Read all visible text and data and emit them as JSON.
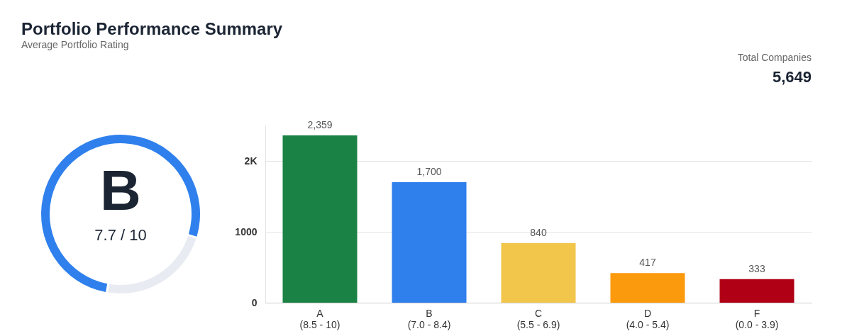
{
  "chart_data": [
    {
      "type": "donut",
      "title": "Portfolio Performance Summary",
      "subtitle": "Average Portfolio Rating",
      "categories": [
        null,
        null
      ],
      "values": [
        77,
        23
      ],
      "colors": [
        "#2f80ed",
        "#e8ecf2"
      ],
      "annotations": [
        "B",
        "7.7 / 10"
      ]
    },
    {
      "type": "bar",
      "categories": [
        "A\n(8.5 - 10)",
        "B\n(7.0 - 8.4)",
        "C\n(5.5 - 6.9)",
        "D\n(4.0 - 5.4)",
        "F\n(0.0 - 3.9)"
      ],
      "values": [
        2359,
        1700,
        840,
        417,
        333
      ],
      "colors": [
        "#1a8244",
        "#2f80ed",
        "#f2c54b",
        "#fb9a0c",
        "#b00016"
      ],
      "ylim": [
        0,
        2500
      ],
      "yticks": [
        0,
        1000,
        {
          "value": 2000,
          "label": "2K"
        }
      ],
      "grid": "y",
      "value_labels": [
        "2,359",
        "1,700",
        "840",
        "417",
        "333"
      ],
      "annotations": [
        "Total Companies",
        "5,649"
      ]
    }
  ]
}
